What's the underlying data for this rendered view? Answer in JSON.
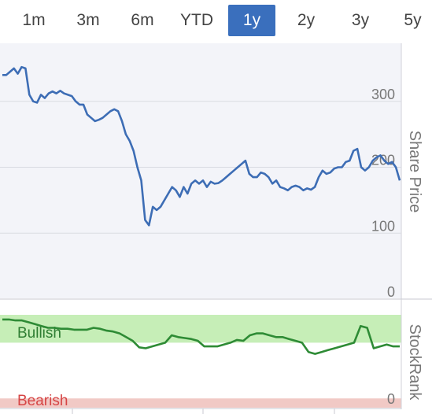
{
  "tabs": [
    {
      "label": "1m",
      "active": false
    },
    {
      "label": "3m",
      "active": false
    },
    {
      "label": "6m",
      "active": false
    },
    {
      "label": "YTD",
      "active": false
    },
    {
      "label": "1y",
      "active": true
    },
    {
      "label": "2y",
      "active": false
    },
    {
      "label": "3y",
      "active": false
    },
    {
      "label": "5y",
      "active": false
    }
  ],
  "colors": {
    "accent": "#3a6fbd",
    "price_line": "#3d6db5",
    "bullish_band": "#c6eeb7",
    "bearish_band": "#f1c9c5",
    "rank_bullish_line": "#2e8b35",
    "rank_neutral_line": "#8b97b0"
  },
  "chart_data": [
    {
      "type": "line",
      "ylabel": "Share Price",
      "ylim": [
        0,
        400
      ],
      "yticks": [
        0,
        100,
        200,
        300
      ],
      "ytick_labels": [
        "0",
        "100",
        "200",
        "300"
      ],
      "grid": true,
      "series": [
        {
          "values": [
            340,
            340,
            345,
            350,
            342,
            352,
            350,
            310,
            300,
            298,
            310,
            305,
            312,
            315,
            312,
            316,
            312,
            310,
            308,
            300,
            295,
            295,
            280,
            275,
            270,
            272,
            275,
            280,
            285,
            288,
            285,
            270,
            250,
            240,
            225,
            200,
            180,
            120,
            112,
            140,
            135,
            140,
            150,
            160,
            170,
            165,
            155,
            170,
            160,
            175,
            180,
            175,
            180,
            170,
            178,
            175,
            176,
            180,
            185,
            190,
            195,
            200,
            205,
            210,
            190,
            185,
            185,
            192,
            190,
            185,
            175,
            180,
            170,
            168,
            165,
            170,
            172,
            170,
            165,
            168,
            166,
            170,
            185,
            195,
            190,
            192,
            198,
            200,
            200,
            208,
            210,
            225,
            228,
            200,
            195,
            200,
            210,
            215,
            218,
            210,
            205,
            208,
            200,
            180
          ]
        }
      ]
    },
    {
      "type": "line",
      "ylabel": "StockRank",
      "ylim": [
        0,
        100
      ],
      "yticks": [
        0
      ],
      "ytick_labels": [
        "0"
      ],
      "bands": [
        {
          "label": "Bullish",
          "from": 70,
          "to": 100
        },
        {
          "label": "Bearish",
          "from": 0,
          "to": 10
        }
      ],
      "series": [
        {
          "values": [
            95,
            95,
            94,
            94,
            92,
            90,
            88,
            86,
            86,
            85,
            85,
            84,
            84,
            84,
            86,
            85,
            83,
            82,
            80,
            76,
            72,
            65,
            64,
            66,
            68,
            70,
            78,
            76,
            75,
            74,
            72,
            66,
            66,
            66,
            68,
            70,
            73,
            72,
            78,
            80,
            80,
            78,
            76,
            76,
            74,
            72,
            70,
            60,
            58,
            60,
            62,
            64,
            66,
            68,
            70,
            88,
            86,
            64,
            66,
            68,
            66,
            66
          ]
        }
      ]
    }
  ],
  "labels": {
    "bullish": "Bullish",
    "bearish": "Bearish"
  }
}
